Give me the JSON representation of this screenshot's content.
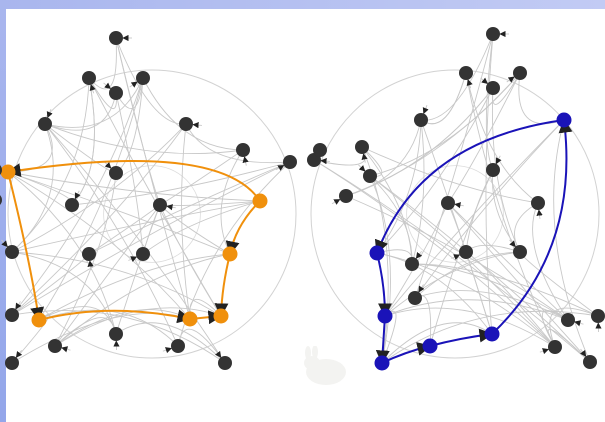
{
  "theme": {
    "frame_color": "#a9b6ee",
    "edge_color": "#c8c8c8",
    "arrow_color": "#222222",
    "node_color": "#333333",
    "left_path_color": "#f0900c",
    "right_path_color": "#1a13b8"
  },
  "diagram": {
    "type": "directed-graph-pair",
    "graphs": [
      {
        "name": "left-graph",
        "highlight": "orange",
        "highlighted_nodes": 6
      },
      {
        "name": "right-graph",
        "highlight": "blue",
        "highlighted_nodes": 6
      }
    ]
  },
  "watermark": {
    "icon": "rabbit-icon"
  }
}
